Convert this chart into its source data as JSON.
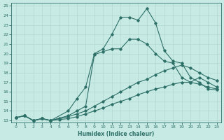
{
  "xlabel": "Humidex (Indice chaleur)",
  "bg_color": "#c8eae4",
  "line_color": "#2d7068",
  "grid_color": "#b0d8d0",
  "xlim": [
    -0.5,
    23.5
  ],
  "ylim": [
    12.8,
    25.3
  ],
  "xticks": [
    0,
    1,
    2,
    3,
    4,
    5,
    6,
    7,
    8,
    9,
    10,
    11,
    12,
    13,
    14,
    15,
    16,
    17,
    18,
    19,
    20,
    21,
    22,
    23
  ],
  "yticks": [
    13,
    14,
    15,
    16,
    17,
    18,
    19,
    20,
    21,
    22,
    23,
    24,
    25
  ],
  "line_main_x": [
    0,
    1,
    2,
    3,
    4,
    6,
    7,
    8,
    9,
    10,
    11,
    12,
    13,
    14,
    15,
    16,
    17,
    18,
    19,
    20,
    21,
    22,
    23
  ],
  "line_main_y": [
    13.3,
    13.5,
    13.0,
    13.2,
    13.0,
    14.0,
    15.3,
    16.5,
    20.0,
    20.5,
    22.0,
    23.8,
    23.8,
    23.5,
    24.7,
    23.2,
    20.3,
    19.2,
    19.0,
    17.5,
    17.0,
    16.3,
    16.2
  ],
  "line_mid_x": [
    0,
    1,
    2,
    3,
    4,
    6,
    7,
    8,
    9,
    10,
    11,
    12,
    13,
    14,
    15,
    16,
    17,
    18,
    19,
    20,
    21,
    22,
    23
  ],
  "line_mid_y": [
    13.3,
    13.5,
    13.0,
    13.2,
    13.0,
    13.5,
    14.0,
    14.5,
    19.9,
    20.2,
    20.5,
    20.5,
    21.5,
    21.5,
    21.0,
    20.0,
    19.2,
    19.0,
    17.5,
    17.0,
    17.5,
    17.0,
    16.5
  ],
  "line_low1_x": [
    0,
    1,
    2,
    3,
    4,
    5,
    6,
    7,
    8,
    9,
    10,
    11,
    12,
    13,
    14,
    15,
    16,
    17,
    18,
    19,
    20,
    21,
    22,
    23
  ],
  "line_low1_y": [
    13.3,
    13.5,
    13.0,
    13.2,
    13.0,
    13.2,
    13.4,
    13.7,
    14.0,
    14.5,
    15.0,
    15.5,
    16.0,
    16.5,
    17.0,
    17.3,
    17.8,
    18.2,
    18.5,
    18.8,
    18.5,
    18.0,
    17.5,
    17.2
  ],
  "line_low2_x": [
    0,
    1,
    2,
    3,
    4,
    5,
    6,
    7,
    8,
    9,
    10,
    11,
    12,
    13,
    14,
    15,
    16,
    17,
    18,
    19,
    20,
    21,
    22,
    23
  ],
  "line_low2_y": [
    13.3,
    13.5,
    13.0,
    13.2,
    13.0,
    13.1,
    13.2,
    13.4,
    13.7,
    14.0,
    14.3,
    14.7,
    15.0,
    15.3,
    15.7,
    16.0,
    16.3,
    16.5,
    16.8,
    17.0,
    17.0,
    16.8,
    16.5,
    16.3
  ]
}
